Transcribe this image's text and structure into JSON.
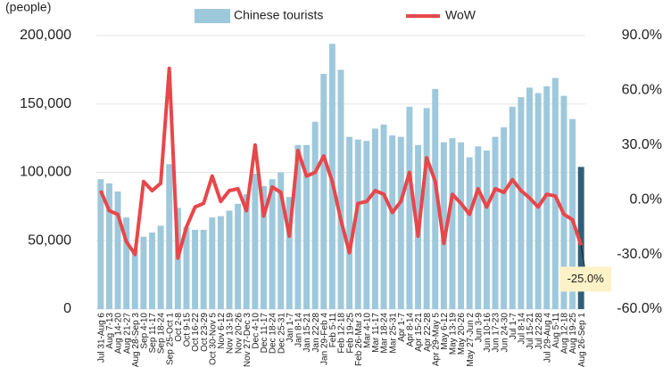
{
  "chart_data": {
    "type": "bar-line",
    "y_unit_label": "(people)",
    "categories": [
      "Jul 31-Aug 6",
      "Aug 7-13",
      "Aug 14-20",
      "Aug 21-27",
      "Aug 28-Sep 3",
      "Sep 4-10",
      "Sep 11-17",
      "Sep 18-24",
      "Sep 25-Oct 1",
      "Oct 2-8",
      "Oct 9-15",
      "Oct 16-22",
      "Oct 23-29",
      "Oct 30-Nov 5",
      "Nov 6-12",
      "Nov 13-19",
      "Nov 20-26",
      "Nov 27-Dec 3",
      "Dec 4-10",
      "Dec 11-17",
      "Dec 18-24",
      "Dec 25-31",
      "Jan 1-7",
      "Jan 8-14",
      "Jan 15-21",
      "Jan 22-28",
      "Jan 29-Feb 4",
      "Feb 5-11",
      "Feb 12-18",
      "Feb 19-25",
      "Feb 26-Mar 3",
      "Mar 4-10",
      "Mar 11-17",
      "Mar 18-24",
      "Mar 25-31",
      "Apr 1-7",
      "Apr 8-14",
      "Apr 15-21",
      "Apr 22-28",
      "Apr 29-May 5",
      "May 6-12",
      "May 13-19",
      "May 20-26",
      "May 27-Jun 2",
      "Jun 3-9",
      "Jun 10-16",
      "Jun 17-23",
      "Jun 24-30",
      "Jul 1-7",
      "Jul 8-14",
      "Jul 15-21",
      "Jul 22-28",
      "Jul 29-Aug 4",
      "Aug 5-11",
      "Aug 12-18",
      "Aug 19-25",
      "Aug 26-Sep 1"
    ],
    "series": [
      {
        "name": "Chinese tourists",
        "type": "bar",
        "color": "#9ec8dc",
        "last_color": "#2e5f7a",
        "values": [
          95000,
          92000,
          86000,
          67000,
          44000,
          53000,
          56000,
          61000,
          106000,
          74000,
          60000,
          58000,
          58000,
          67000,
          68000,
          72000,
          77000,
          84000,
          99000,
          90000,
          95000,
          100000,
          82000,
          120000,
          120000,
          137000,
          172000,
          194000,
          175000,
          126000,
          124000,
          123000,
          132000,
          135000,
          127000,
          126000,
          148000,
          120000,
          147000,
          161000,
          122000,
          125000,
          122000,
          111000,
          119000,
          116000,
          126000,
          133000,
          148000,
          155000,
          162000,
          158000,
          163000,
          169000,
          156000,
          139000,
          104000
        ]
      },
      {
        "name": "WoW",
        "type": "line",
        "axis": "y2",
        "color": "#e8474a",
        "values": [
          5,
          -6,
          -8,
          -23,
          -30,
          10,
          5,
          9,
          72,
          -32,
          -15,
          -4,
          -2,
          13,
          -1,
          5,
          6,
          -6,
          30,
          -9,
          7,
          4,
          -20,
          27,
          13,
          15,
          24,
          10,
          -11,
          -29,
          -2,
          -1,
          5,
          3,
          -7,
          -1,
          15,
          -20,
          23,
          10,
          -24,
          3,
          -2,
          -8,
          6,
          -4,
          6,
          4,
          11,
          5,
          1,
          -4,
          3,
          2,
          -8,
          -11,
          -25
        ],
        "value_labels": [
          null,
          null,
          null,
          null,
          null,
          null,
          null,
          null,
          null,
          null,
          null,
          null,
          null,
          null,
          null,
          null,
          null,
          null,
          null,
          null,
          null,
          null,
          null,
          null,
          null,
          null,
          null,
          null,
          null,
          null,
          null,
          null,
          null,
          null,
          null,
          null,
          null,
          null,
          null,
          null,
          null,
          null,
          null,
          null,
          null,
          null,
          null,
          null,
          null,
          null,
          null,
          null,
          null,
          null,
          null,
          null,
          "-25.0%"
        ]
      }
    ],
    "ylim": [
      0,
      200000
    ],
    "yticks": [
      0,
      {
        "value": 50000,
        "label": "50,000"
      },
      {
        "value": 100000,
        "label": "100,000"
      },
      {
        "value": 150000,
        "label": "150,000"
      },
      {
        "value": 200000,
        "label": "200,000"
      }
    ],
    "y2lim": [
      -60,
      90
    ],
    "y2ticks": [
      {
        "value": -60,
        "label": "-60.0%"
      },
      {
        "value": -30,
        "label": "-30.0%"
      },
      {
        "value": 0,
        "label": "0.0%"
      },
      {
        "value": 30,
        "label": "30.0%"
      },
      {
        "value": 60,
        "label": "60.0%"
      },
      {
        "value": 90,
        "label": "90.0%"
      }
    ],
    "grid": true
  }
}
